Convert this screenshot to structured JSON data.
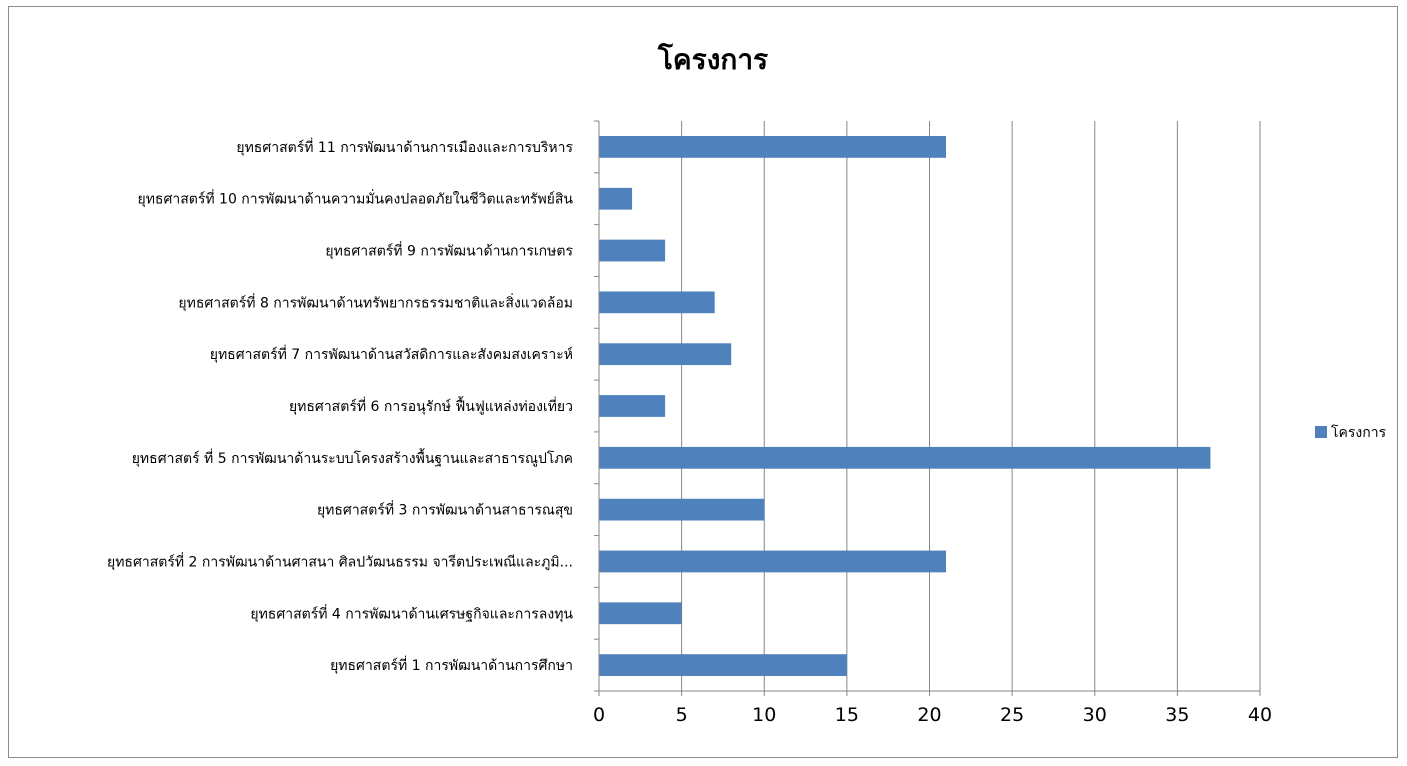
{
  "chart_data": {
    "type": "bar",
    "orientation": "horizontal",
    "title": "โครงการ",
    "categories": [
      "ยุทธศาสตร์ที่ 11 การพัฒนาด้านการเมืองและการบริหาร",
      "ยุทธศาสตร์ที่ 10 การพัฒนาด้านความมั่นคงปลอดภัยในชีวิตและทรัพย์สิน",
      "ยุทธศาสตร์ที่ 9 การพัฒนาด้านการเกษตร",
      "ยุทธศาสตร์ที่ 8 การพัฒนาด้านทรัพยากรธรรมชาติและสิ่งแวดล้อม",
      "ยุทธศาสตร์ที่ 7 การพัฒนาด้านสวัสดิการและสังคมสงเคราะห์",
      "ยุทธศาสตร์ที่ 6 การอนุรักษ์ ฟื้นฟูแหล่งท่องเที่ยว",
      "ยุทธศาสตร์ ที่ 5 การพัฒนาด้านระบบโครงสร้างพื้นฐานและสาธารณูปโภค",
      "ยุทธศาสตร์ที่ 3 การพัฒนาด้านสาธารณสุข",
      "ยุทธศาสตร์ที่ 2 การพัฒนาด้านศาสนา ศิลปวัฒนธรรม จารีตประเพณีและภูมิ...",
      "ยุทธศาสตร์ที่ 4 การพัฒนาด้านเศรษฐกิจและการลงทุน",
      "ยุทธศาสตร์ที่ 1 การพัฒนาด้านการศึกษา"
    ],
    "series": [
      {
        "name": "โครงการ",
        "values": [
          21,
          2,
          4,
          7,
          8,
          4,
          37,
          10,
          21,
          5,
          15
        ],
        "color": "#4f81bd"
      }
    ],
    "xlim": [
      0,
      40
    ],
    "xticks": [
      0,
      5,
      10,
      15,
      20,
      25,
      30,
      35,
      40
    ],
    "grid": "vertical",
    "legend": "right"
  },
  "colors": {
    "bar": "#4f81bd",
    "grid": "#868686",
    "axis": "#868686",
    "frame": "#8c8c8c"
  }
}
